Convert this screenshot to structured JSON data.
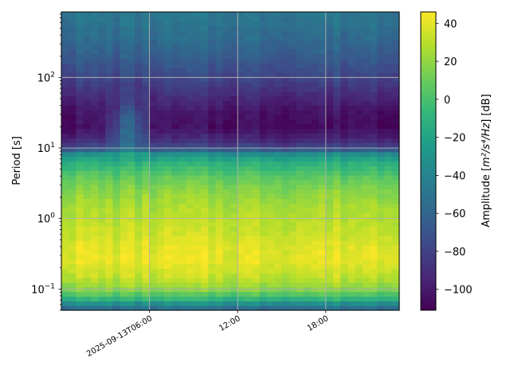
{
  "chart_data": {
    "type": "heatmap",
    "title": "",
    "xlabel": "",
    "ylabel": "Period [s]",
    "y_scale": "log",
    "ylim": [
      0.05,
      850
    ],
    "x_tick_labels": [
      "2025-09-13T06:00",
      "12:00",
      "18:00"
    ],
    "x_range_hours": [
      0,
      23
    ],
    "x_tick_hours": [
      6,
      12,
      18
    ],
    "y_ticks": [
      {
        "value": 0.1,
        "base": "10",
        "exp": "−1"
      },
      {
        "value": 1,
        "base": "10",
        "exp": "0"
      },
      {
        "value": 10,
        "base": "10",
        "exp": "1"
      },
      {
        "value": 100,
        "base": "10",
        "exp": "2"
      }
    ],
    "grid": true,
    "colormap": "viridis",
    "colorbar": {
      "label_prefix": "Amplitude [",
      "label_math": "m²/s⁴/Hz",
      "label_suffix": "] [dB]",
      "vmin": -111,
      "vmax": 46,
      "ticks": [
        40,
        20,
        0,
        -20,
        -40,
        -60,
        -80,
        -100
      ],
      "tick_labels": [
        "40",
        "20",
        "0",
        "−20",
        "−40",
        "−60",
        "−80",
        "−100"
      ]
    },
    "amplitude_profile_db": [
      {
        "period": 0.05,
        "db": -62
      },
      {
        "period": 0.06,
        "db": -40
      },
      {
        "period": 0.075,
        "db": -5
      },
      {
        "period": 0.1,
        "db": 18
      },
      {
        "period": 0.15,
        "db": 32
      },
      {
        "period": 0.25,
        "db": 40
      },
      {
        "period": 0.4,
        "db": 40
      },
      {
        "period": 0.6,
        "db": 34
      },
      {
        "period": 1.0,
        "db": 30
      },
      {
        "period": 1.5,
        "db": 26
      },
      {
        "period": 2.5,
        "db": 18
      },
      {
        "period": 4.0,
        "db": 6
      },
      {
        "period": 6.0,
        "db": -10
      },
      {
        "period": 8.0,
        "db": -28
      },
      {
        "period": 10,
        "db": -75
      },
      {
        "period": 13,
        "db": -92
      },
      {
        "period": 20,
        "db": -106
      },
      {
        "period": 35,
        "db": -102
      },
      {
        "period": 60,
        "db": -90
      },
      {
        "period": 100,
        "db": -78
      },
      {
        "period": 200,
        "db": -65
      },
      {
        "period": 400,
        "db": -55
      },
      {
        "period": 850,
        "db": -48
      }
    ]
  }
}
